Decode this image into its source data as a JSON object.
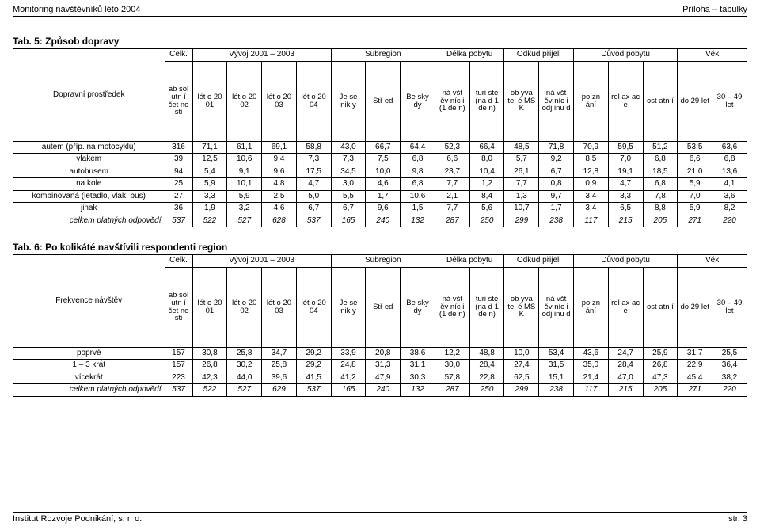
{
  "header": {
    "left": "Monitoring návštěvníků léto 2004",
    "right": "Příloha – tabulky"
  },
  "footer": {
    "left": "Institut Rozvoje Podnikání, s. r. o.",
    "right": "str. 3"
  },
  "colgroup_labels": {
    "celk": "Celk.",
    "vyvoj": "Vývoj 2001 – 2003",
    "subregion": "Subregion",
    "delka": "Délka pobytu",
    "odkud": "Odkud přijeli",
    "duvod": "Důvod pobytu",
    "vek": "Věk"
  },
  "col_headers": [
    "ab sol utn í čet no sti",
    "lét o 20 01",
    "lét o 20 02",
    "lét o 20 03",
    "lét o 20 04",
    "Je se nik y",
    "Stř ed",
    "Be sky dy",
    "ná všt ěv níc i (1 de n)",
    "turi sté (na d 1 de n)",
    "ob yva tel é MS K",
    "ná všt ěv níc i odj inu d",
    "po zn ání",
    "rel ax ac e",
    "ost atn í",
    "do 29 let",
    "30 – 49 let"
  ],
  "table5": {
    "title": "Tab. 5: Způsob dopravy",
    "sublabel": "Dopravní prostředek",
    "rows": [
      {
        "label": "autem (příp. na motocyklu)",
        "v": [
          "316",
          "71,1",
          "61,1",
          "69,1",
          "58,8",
          "43,0",
          "66,7",
          "64,4",
          "52,3",
          "66,4",
          "48,5",
          "71,8",
          "70,9",
          "59,5",
          "51,2",
          "53,5",
          "63,6"
        ]
      },
      {
        "label": "vlakem",
        "v": [
          "39",
          "12,5",
          "10,6",
          "9,4",
          "7,3",
          "7,3",
          "7,5",
          "6,8",
          "6,6",
          "8,0",
          "5,7",
          "9,2",
          "8,5",
          "7,0",
          "6,8",
          "6,6",
          "6,8"
        ]
      },
      {
        "label": "autobusem",
        "v": [
          "94",
          "5,4",
          "9,1",
          "9,6",
          "17,5",
          "34,5",
          "10,0",
          "9,8",
          "23,7",
          "10,4",
          "26,1",
          "6,7",
          "12,8",
          "19,1",
          "18,5",
          "21,0",
          "13,6"
        ]
      },
      {
        "label": "na kole",
        "v": [
          "25",
          "5,9",
          "10,1",
          "4,8",
          "4,7",
          "3,0",
          "4,6",
          "6,8",
          "7,7",
          "1,2",
          "7,7",
          "0,8",
          "0,9",
          "4,7",
          "6,8",
          "5,9",
          "4,1"
        ]
      },
      {
        "label": "kombinovaná (letadlo, vlak, bus)",
        "v": [
          "27",
          "3,3",
          "5,9",
          "2,5",
          "5,0",
          "5,5",
          "1,7",
          "10,6",
          "2,1",
          "8,4",
          "1,3",
          "9,7",
          "3,4",
          "3,3",
          "7,8",
          "7,0",
          "3,6"
        ]
      },
      {
        "label": "jinak",
        "v": [
          "36",
          "1,9",
          "3,2",
          "4,6",
          "6,7",
          "6,7",
          "9,6",
          "1,5",
          "7,7",
          "5,6",
          "10,7",
          "1,7",
          "3,4",
          "6,5",
          "8,8",
          "5,9",
          "8,2"
        ]
      }
    ],
    "total": {
      "label": "celkem platných odpovědí",
      "v": [
        "537",
        "522",
        "527",
        "628",
        "537",
        "165",
        "240",
        "132",
        "287",
        "250",
        "299",
        "238",
        "117",
        "215",
        "205",
        "271",
        "220"
      ]
    }
  },
  "table6": {
    "title": "Tab. 6: Po kolikáté navštívili respondenti region",
    "sublabel": "Frekvence návštěv",
    "rows": [
      {
        "label": "poprvé",
        "v": [
          "157",
          "30,8",
          "25,8",
          "34,7",
          "29,2",
          "33,9",
          "20,8",
          "38,6",
          "12,2",
          "48,8",
          "10,0",
          "53,4",
          "43,6",
          "24,7",
          "25,9",
          "31,7",
          "25,5"
        ]
      },
      {
        "label": "1 – 3 krát",
        "v": [
          "157",
          "26,8",
          "30,2",
          "25,8",
          "29,2",
          "24,8",
          "31,3",
          "31,1",
          "30,0",
          "28,4",
          "27,4",
          "31,5",
          "35,0",
          "28,4",
          "26,8",
          "22,9",
          "36,4"
        ]
      },
      {
        "label": "vícekrát",
        "v": [
          "223",
          "42,3",
          "44,0",
          "39,6",
          "41,5",
          "41,2",
          "47,9",
          "30,3",
          "57,8",
          "22,8",
          "62,5",
          "15,1",
          "21,4",
          "47,0",
          "47,3",
          "45,4",
          "38,2"
        ]
      }
    ],
    "total": {
      "label": "celkem platných odpovědí",
      "v": [
        "537",
        "522",
        "527",
        "629",
        "537",
        "165",
        "240",
        "132",
        "287",
        "250",
        "299",
        "238",
        "117",
        "215",
        "205",
        "271",
        "220"
      ]
    }
  }
}
